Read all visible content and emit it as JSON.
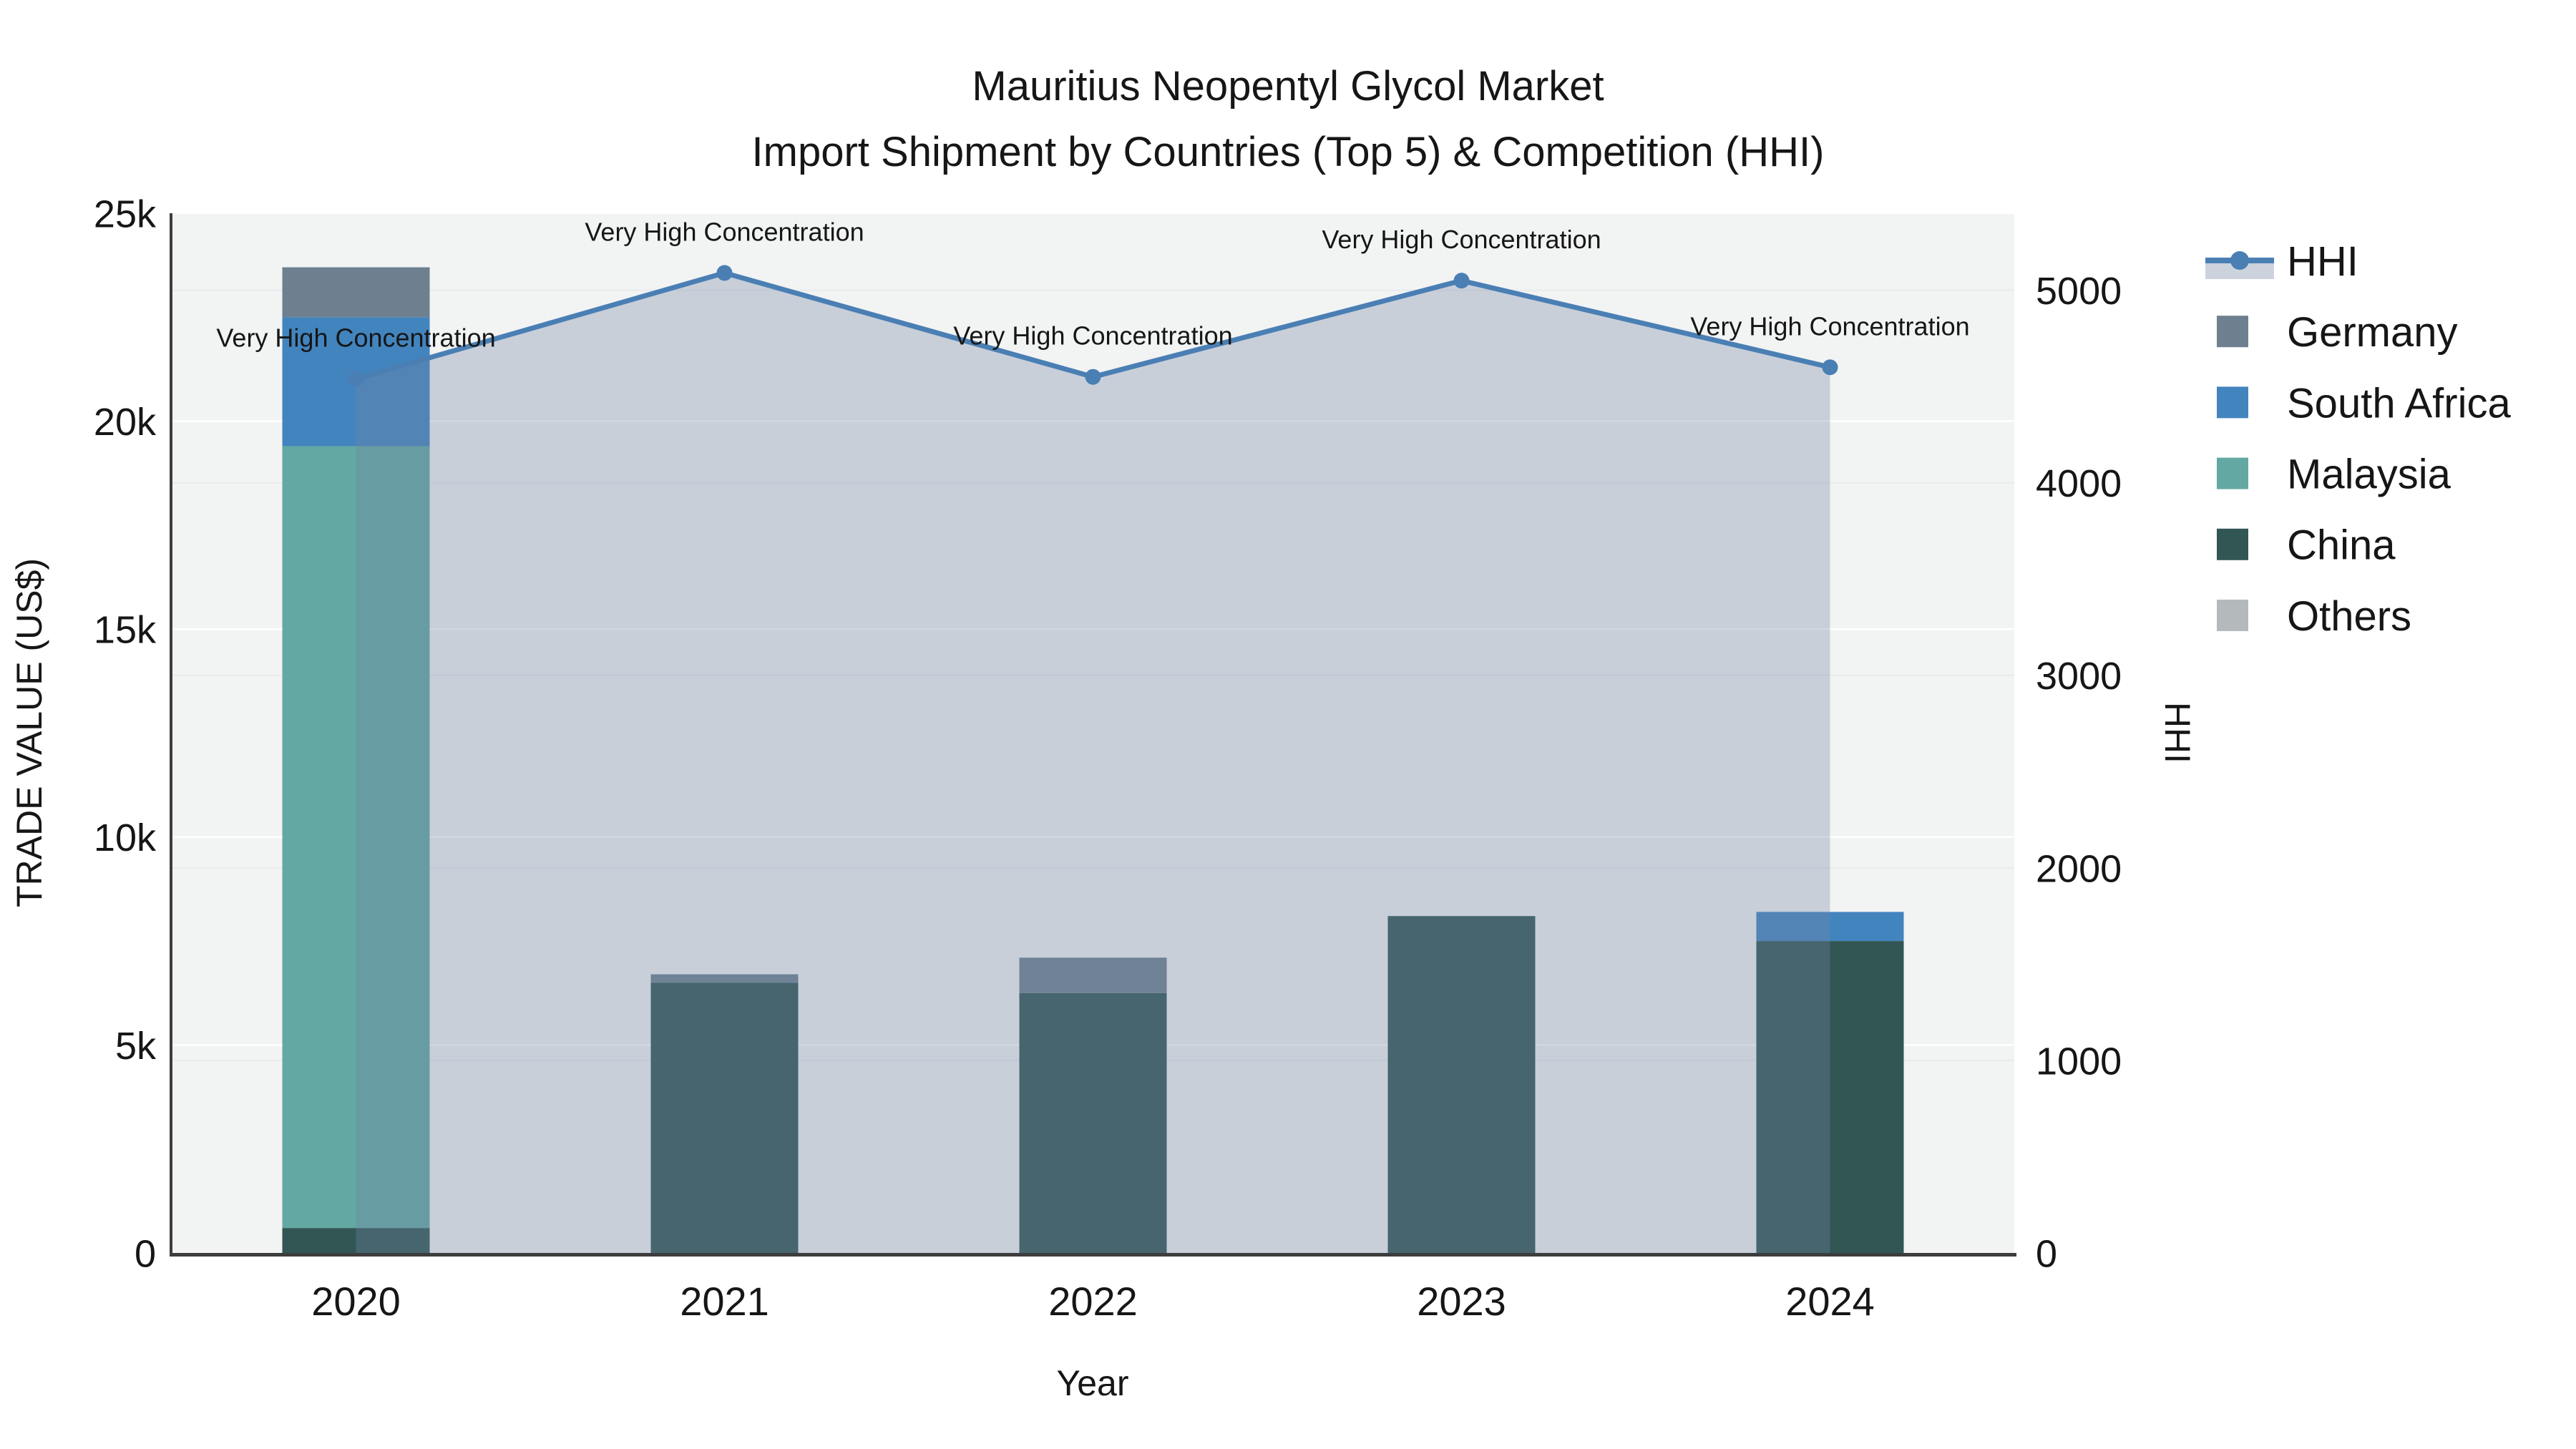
{
  "title": {
    "line1": "Mauritius Neopentyl Glycol Market",
    "line2": "Import Shipment by Countries (Top 5) & Competition (HHI)"
  },
  "axes": {
    "x": {
      "title": "Year"
    },
    "y_left": {
      "title": "TRADE VALUE (US$)"
    },
    "y_right": {
      "title": "HHI"
    }
  },
  "chart_data": {
    "type": "bar+line",
    "categories": [
      "2020",
      "2021",
      "2022",
      "2023",
      "2024"
    ],
    "bar_series": [
      {
        "name": "China",
        "color": "#315654",
        "values": [
          600,
          6500,
          6250,
          8100,
          7500
        ]
      },
      {
        "name": "Malaysia",
        "color": "#63a8a3",
        "values": [
          18800,
          0,
          0,
          0,
          0
        ]
      },
      {
        "name": "South Africa",
        "color": "#4284be",
        "values": [
          3100,
          0,
          0,
          0,
          700
        ]
      },
      {
        "name": "Germany",
        "color": "#6e808f",
        "values": [
          1200,
          200,
          850,
          0,
          0
        ]
      },
      {
        "name": "Others",
        "color": "#b4babc",
        "values": [
          0,
          0,
          0,
          0,
          0
        ]
      }
    ],
    "line_series": {
      "name": "HHI",
      "color": "#4a7fb4",
      "fill_color": "rgba(115,133,165,0.33)",
      "axis": "right",
      "values": [
        4540,
        5090,
        4550,
        5050,
        4600
      ]
    },
    "annotations": [
      {
        "text": "Very High Concentration",
        "category": "2020",
        "value": 4540
      },
      {
        "text": "Very High Concentration",
        "category": "2021",
        "value": 5090
      },
      {
        "text": "Very High Concentration",
        "category": "2022",
        "value": 4550
      },
      {
        "text": "Very High Concentration",
        "category": "2023",
        "value": 5050
      },
      {
        "text": "Very High Concentration",
        "category": "2024",
        "value": 4600
      }
    ],
    "xlabel": "Year",
    "ylabel_left": "TRADE VALUE (US$)",
    "ylabel_right": "HHI",
    "y_left_ticks": {
      "labels": [
        "0",
        "5k",
        "10k",
        "15k",
        "20k",
        "25k"
      ],
      "values": [
        0,
        5000,
        10000,
        15000,
        20000,
        25000
      ]
    },
    "y_right_ticks": {
      "labels": [
        "0",
        "1000",
        "2000",
        "3000",
        "4000",
        "5000"
      ],
      "values": [
        0,
        1000,
        2000,
        3000,
        4000,
        5000
      ]
    },
    "y_left_range": [
      0,
      25000
    ],
    "y_right_range": [
      0,
      5400
    ],
    "grid": true,
    "legend_position": "right"
  },
  "legend": {
    "items": [
      {
        "label": "HHI",
        "type": "line",
        "color": "#4a7fb4",
        "band_color": "#ccd3dc"
      },
      {
        "label": "Germany",
        "type": "square",
        "color": "#6e808f"
      },
      {
        "label": "South Africa",
        "type": "square",
        "color": "#4284be"
      },
      {
        "label": "Malaysia",
        "type": "square",
        "color": "#63a8a3"
      },
      {
        "label": "China",
        "type": "square",
        "color": "#315654"
      },
      {
        "label": "Others",
        "type": "square",
        "color": "#b4babc"
      }
    ]
  },
  "colors": {
    "plot_bg": "#f2f3f3",
    "grid_left": "#ffffff",
    "grid_right": "#e7eaee",
    "axis_line": "#3d3d3d",
    "text": "#161616"
  }
}
